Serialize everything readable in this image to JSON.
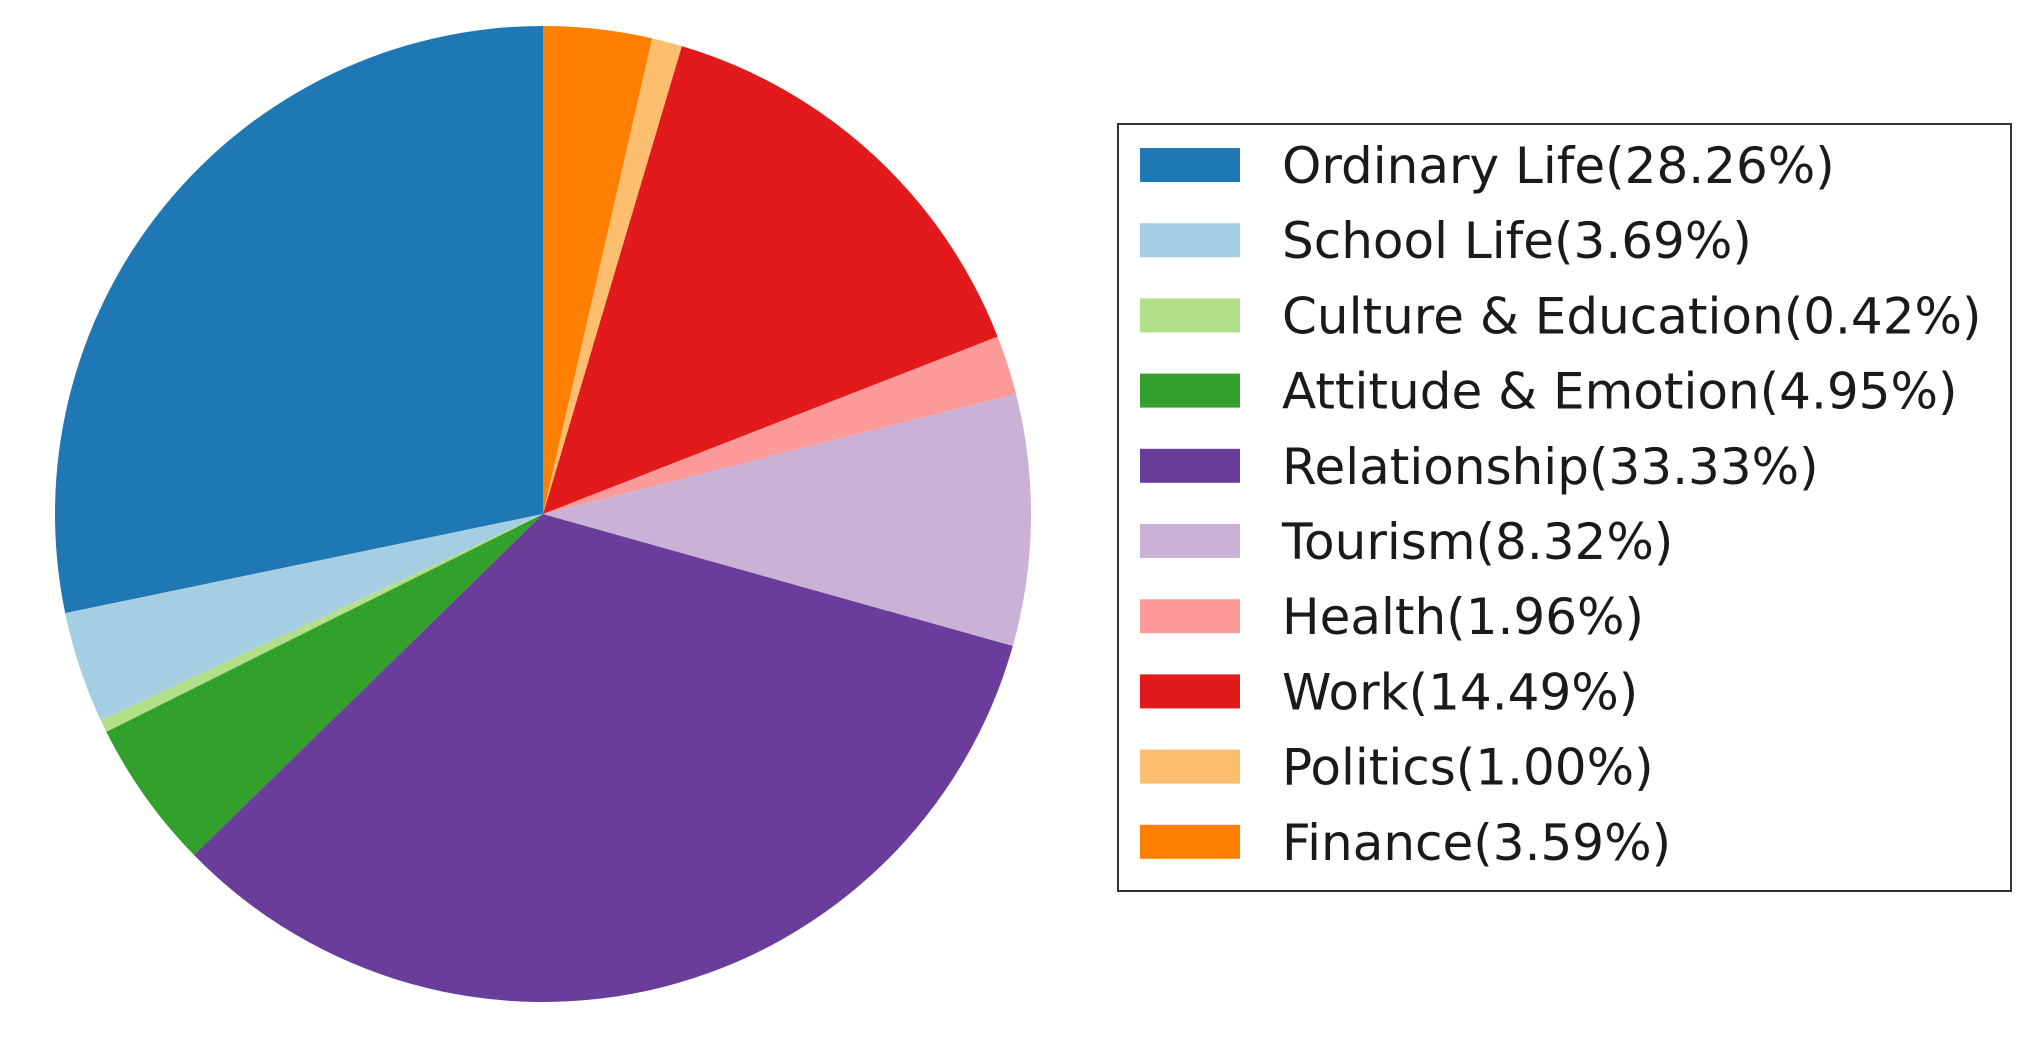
{
  "chart_data": {
    "type": "pie",
    "title": "",
    "start_angle": "top",
    "direction": "counterclockwise",
    "legend": {
      "placement": "right"
    },
    "slices": [
      {
        "label": "Ordinary Life(28.26%)",
        "value": 28.26,
        "color": "#1f77b4"
      },
      {
        "label": "School Life(3.69%)",
        "value": 3.69,
        "color": "#a6cee3"
      },
      {
        "label": "Culture & Education(0.42%)",
        "value": 0.42,
        "color": "#b2df8a"
      },
      {
        "label": "Attitude & Emotion(4.95%)",
        "value": 4.95,
        "color": "#33a02c"
      },
      {
        "label": "Relationship(33.33%)",
        "value": 33.33,
        "color": "#6a3d9a"
      },
      {
        "label": "Tourism(8.32%)",
        "value": 8.32,
        "color": "#cab2d6"
      },
      {
        "label": "Health(1.96%)",
        "value": 1.96,
        "color": "#fb9a99"
      },
      {
        "label": "Work(14.49%)",
        "value": 14.49,
        "color": "#e31a1c"
      },
      {
        "label": "Politics(1.00%)",
        "value": 1.0,
        "color": "#fdbf6f"
      },
      {
        "label": "Finance(3.59%)",
        "value": 3.59,
        "color": "#ff7f00"
      }
    ]
  }
}
